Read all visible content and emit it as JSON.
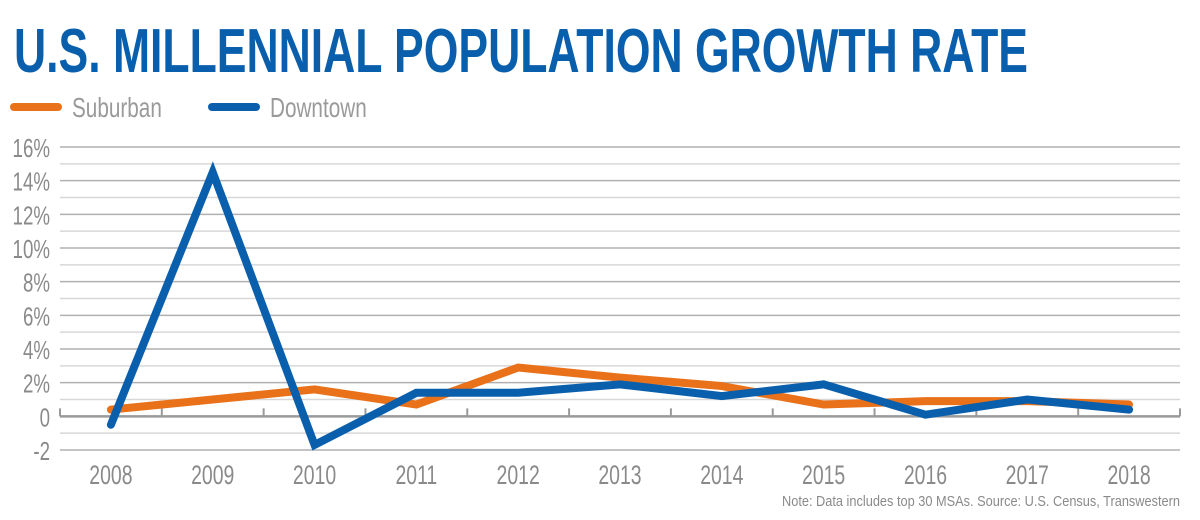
{
  "chart_data": {
    "type": "line",
    "title": "U.S. MILLENNIAL POPULATION GROWTH RATE",
    "xlabel": "",
    "ylabel": "",
    "categories": [
      "2008",
      "2009",
      "2010",
      "2011",
      "2012",
      "2013",
      "2014",
      "2015",
      "2016",
      "2017",
      "2018"
    ],
    "series": [
      {
        "name": "Suburban",
        "color": "#e8711a",
        "values": [
          0.4,
          1.0,
          1.6,
          0.7,
          2.9,
          2.3,
          1.8,
          0.7,
          0.9,
          0.9,
          0.7
        ]
      },
      {
        "name": "Downtown",
        "color": "#0a5fad",
        "values": [
          -0.5,
          14.5,
          -1.7,
          1.4,
          1.4,
          1.9,
          1.2,
          1.9,
          0.1,
          1.0,
          0.4
        ]
      }
    ],
    "ylim": [
      -2,
      16
    ],
    "yticks": [
      -2,
      0,
      2,
      4,
      6,
      8,
      10,
      12,
      14,
      16
    ],
    "ytick_labels": [
      "-2",
      "0",
      "2%",
      "4%",
      "6%",
      "8%",
      "10%",
      "12%",
      "14%",
      "16%"
    ],
    "grid": true,
    "legend_position": "top-left",
    "note": "Note: Data includes top 30 MSAs. Source: U.S. Census, Transwestern"
  }
}
